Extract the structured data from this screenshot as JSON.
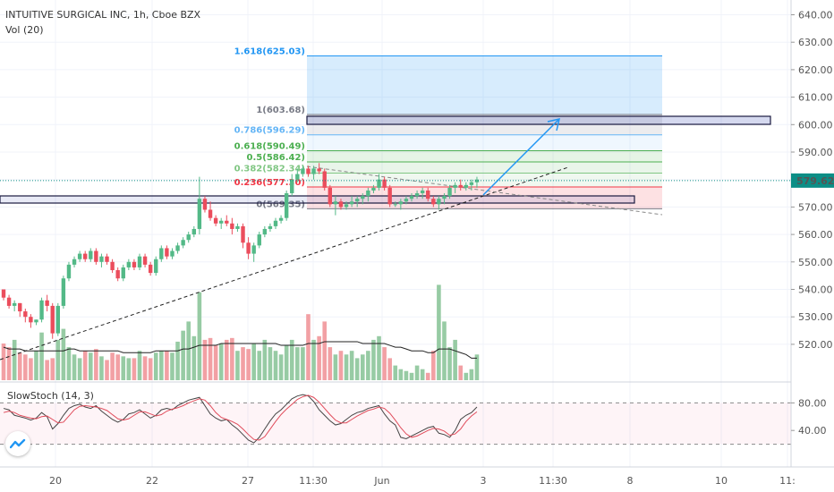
{
  "header": {
    "title": "INTUITIVE SURGICAL INC, 1h, Cboe BZX",
    "volume_label": "Vol (20)"
  },
  "stoch_label": "SlowStoch (14, 3)",
  "colors": {
    "up": "#53b987",
    "down": "#eb4d5c",
    "vol_up": "#97cba4",
    "vol_down": "#f2a0a4",
    "last_price": "#0c8e86",
    "arrow": "#2196f3",
    "stoch_k": "#444444",
    "stoch_d": "#e04b5a"
  },
  "chart_data": {
    "type": "candlestick",
    "symbol": "INTUITIVE SURGICAL INC",
    "interval": "1h",
    "exchange": "Cboe BZX",
    "ylim": [
      510,
      645
    ],
    "yticks": [
      520,
      530,
      540,
      550,
      560,
      570,
      580,
      590,
      600,
      610,
      620,
      630,
      640
    ],
    "xtick_labels": [
      "20",
      "22",
      "27",
      "11:30",
      "Jun",
      "3",
      "11:30",
      "8",
      "10",
      "11:"
    ],
    "last_price": 579.62,
    "last_price_label": "579.62",
    "candles": [
      [
        540,
        540,
        536,
        537
      ],
      [
        537,
        538,
        533,
        534
      ],
      [
        534,
        536,
        532,
        535
      ],
      [
        535,
        535,
        530,
        532
      ],
      [
        532,
        533,
        528,
        530
      ],
      [
        530,
        531,
        526,
        528
      ],
      [
        528,
        529,
        527,
        529
      ],
      [
        529,
        537,
        528,
        536
      ],
      [
        536,
        538,
        532,
        534
      ],
      [
        534,
        535,
        522,
        524
      ],
      [
        524,
        535,
        523,
        534
      ],
      [
        534,
        545,
        533,
        544
      ],
      [
        544,
        550,
        543,
        549
      ],
      [
        549,
        552,
        548,
        551
      ],
      [
        551,
        554,
        550,
        553
      ],
      [
        553,
        554,
        550,
        551
      ],
      [
        551,
        555,
        550,
        554
      ],
      [
        554,
        555,
        549,
        550
      ],
      [
        550,
        553,
        548,
        552
      ],
      [
        552,
        553,
        549,
        550
      ],
      [
        550,
        551,
        546,
        547
      ],
      [
        547,
        548,
        543,
        544
      ],
      [
        544,
        549,
        543,
        548
      ],
      [
        548,
        551,
        547,
        550
      ],
      [
        550,
        551,
        547,
        548
      ],
      [
        548,
        553,
        547,
        552
      ],
      [
        552,
        553,
        548,
        549
      ],
      [
        549,
        550,
        545,
        546
      ],
      [
        546,
        552,
        545,
        551
      ],
      [
        551,
        556,
        550,
        555
      ],
      [
        555,
        556,
        551,
        552
      ],
      [
        552,
        555,
        551,
        554
      ],
      [
        554,
        557,
        553,
        556
      ],
      [
        556,
        559,
        555,
        558
      ],
      [
        558,
        561,
        557,
        560
      ],
      [
        560,
        563,
        559,
        562
      ],
      [
        562,
        581,
        560,
        573
      ],
      [
        573,
        574,
        568,
        569
      ],
      [
        569,
        572,
        565,
        566
      ],
      [
        566,
        567,
        563,
        564
      ],
      [
        564,
        566,
        562,
        565
      ],
      [
        565,
        567,
        563,
        564
      ],
      [
        564,
        566,
        560,
        562
      ],
      [
        562,
        564,
        561,
        563
      ],
      [
        563,
        564,
        555,
        557
      ],
      [
        557,
        559,
        551,
        553
      ],
      [
        553,
        557,
        550,
        556
      ],
      [
        556,
        561,
        555,
        560
      ],
      [
        560,
        563,
        559,
        562
      ],
      [
        562,
        564,
        561,
        563
      ],
      [
        563,
        566,
        562,
        565
      ],
      [
        565,
        567,
        564,
        566
      ],
      [
        566,
        576,
        565,
        575
      ],
      [
        575,
        582,
        574,
        580
      ],
      [
        580,
        584,
        579,
        582
      ],
      [
        582,
        585,
        581,
        584
      ],
      [
        584,
        585,
        581,
        582
      ],
      [
        582,
        585,
        580,
        584
      ],
      [
        584,
        586,
        582,
        583
      ],
      [
        583,
        584,
        576,
        577
      ],
      [
        577,
        578,
        570,
        571
      ],
      [
        571,
        574,
        567,
        572
      ],
      [
        572,
        573,
        569,
        570
      ],
      [
        570,
        572,
        569,
        571
      ],
      [
        571,
        574,
        570,
        572
      ],
      [
        572,
        574,
        570,
        573
      ],
      [
        573,
        575,
        571,
        574
      ],
      [
        574,
        577,
        572,
        576
      ],
      [
        576,
        578,
        575,
        577
      ],
      [
        577,
        582,
        576,
        580
      ],
      [
        580,
        581,
        576,
        577
      ],
      [
        577,
        578,
        570,
        571
      ],
      [
        571,
        572,
        570,
        571
      ],
      [
        571,
        573,
        569,
        572
      ],
      [
        572,
        574,
        571,
        573
      ],
      [
        573,
        575,
        572,
        574
      ],
      [
        574,
        576,
        573,
        575
      ],
      [
        575,
        577,
        573,
        576
      ],
      [
        576,
        577,
        572,
        573
      ],
      [
        573,
        574,
        570,
        571
      ],
      [
        571,
        574,
        569,
        573
      ],
      [
        573,
        575,
        571,
        574
      ],
      [
        574,
        578,
        573,
        577
      ],
      [
        577,
        579,
        575,
        578
      ],
      [
        578,
        580,
        576,
        577
      ],
      [
        577,
        579,
        576,
        578
      ],
      [
        578,
        580,
        576,
        579
      ],
      [
        579,
        581,
        577,
        580
      ]
    ],
    "volume": [
      20,
      18,
      22,
      15,
      14,
      12,
      16,
      26,
      11,
      12,
      22,
      28,
      18,
      14,
      12,
      16,
      15,
      17,
      13,
      11,
      15,
      14,
      13,
      12,
      12,
      16,
      13,
      12,
      15,
      16,
      16,
      15,
      21,
      27,
      32,
      24,
      48,
      22,
      23,
      19,
      20,
      22,
      23,
      16,
      18,
      17,
      20,
      16,
      22,
      18,
      16,
      14,
      19,
      22,
      18,
      18,
      36,
      22,
      24,
      32,
      18,
      14,
      16,
      14,
      16,
      12,
      14,
      16,
      22,
      24,
      18,
      12,
      8,
      6,
      5,
      4,
      8,
      6,
      4,
      16,
      52,
      32,
      18,
      22,
      8,
      4,
      6,
      14
    ],
    "volume_ma": [
      18,
      17,
      17,
      17,
      16,
      16,
      16,
      16,
      16,
      16,
      16,
      16,
      17,
      17,
      16,
      16,
      16,
      16,
      16,
      16,
      16,
      16,
      15,
      15,
      15,
      15,
      15,
      15,
      16,
      16,
      16,
      16,
      16,
      17,
      17,
      18,
      19,
      19,
      19,
      19,
      20,
      20,
      20,
      20,
      20,
      20,
      20,
      20,
      20,
      20,
      20,
      19,
      19,
      19,
      19,
      19,
      20,
      20,
      20,
      21,
      21,
      21,
      21,
      21,
      21,
      21,
      20,
      20,
      20,
      20,
      20,
      19,
      18,
      18,
      17,
      16,
      16,
      16,
      15,
      15,
      17,
      17,
      17,
      16,
      15,
      14,
      12,
      12
    ],
    "stoch_k": [
      72,
      70,
      62,
      60,
      58,
      55,
      58,
      66,
      60,
      42,
      50,
      62,
      72,
      76,
      78,
      74,
      72,
      76,
      68,
      62,
      56,
      52,
      56,
      64,
      66,
      70,
      64,
      58,
      62,
      70,
      72,
      70,
      76,
      80,
      84,
      86,
      88,
      76,
      64,
      58,
      54,
      56,
      48,
      42,
      34,
      26,
      22,
      30,
      42,
      54,
      64,
      70,
      78,
      86,
      90,
      92,
      90,
      82,
      70,
      62,
      54,
      48,
      50,
      56,
      62,
      66,
      68,
      72,
      74,
      76,
      64,
      54,
      48,
      30,
      28,
      32,
      36,
      40,
      44,
      46,
      36,
      34,
      30,
      40,
      56,
      62,
      66,
      74
    ],
    "stoch_d": [
      66,
      68,
      66,
      62,
      60,
      58,
      57,
      60,
      61,
      56,
      51,
      52,
      61,
      70,
      75,
      76,
      75,
      74,
      72,
      69,
      63,
      57,
      55,
      57,
      62,
      67,
      67,
      64,
      61,
      63,
      68,
      71,
      73,
      76,
      80,
      83,
      86,
      84,
      76,
      66,
      59,
      56,
      53,
      49,
      42,
      34,
      27,
      26,
      31,
      42,
      53,
      63,
      71,
      78,
      85,
      89,
      91,
      88,
      81,
      72,
      63,
      55,
      51,
      51,
      56,
      61,
      65,
      69,
      71,
      74,
      72,
      65,
      55,
      44,
      35,
      30,
      32,
      36,
      40,
      43,
      42,
      39,
      33,
      35,
      42,
      53,
      61,
      67
    ],
    "stoch_levels": [
      80,
      20
    ],
    "stoch_ticks": [
      "80.00",
      "40.00"
    ],
    "fibonacci": [
      {
        "label": "1.618(625.03)",
        "value": 625.03,
        "color": "#2196f3"
      },
      {
        "label": "1(603.68)",
        "value": 603.68,
        "color": "#787b86"
      },
      {
        "label": "0.786(596.29)",
        "value": 596.29,
        "color": "#64b5f6"
      },
      {
        "label": "0.618(590.49)",
        "value": 590.49,
        "color": "#4caf50"
      },
      {
        "label": "0.5(586.42)",
        "value": 586.42,
        "color": "#4caf50"
      },
      {
        "label": "0.382(582.34)",
        "value": 582.34,
        "color": "#81c784"
      },
      {
        "label": "0.236(577.30)",
        "value": 577.3,
        "color": "#f23645"
      },
      {
        "label": "0(569.35)",
        "value": 569.35,
        "color": "#787b86"
      }
    ]
  }
}
